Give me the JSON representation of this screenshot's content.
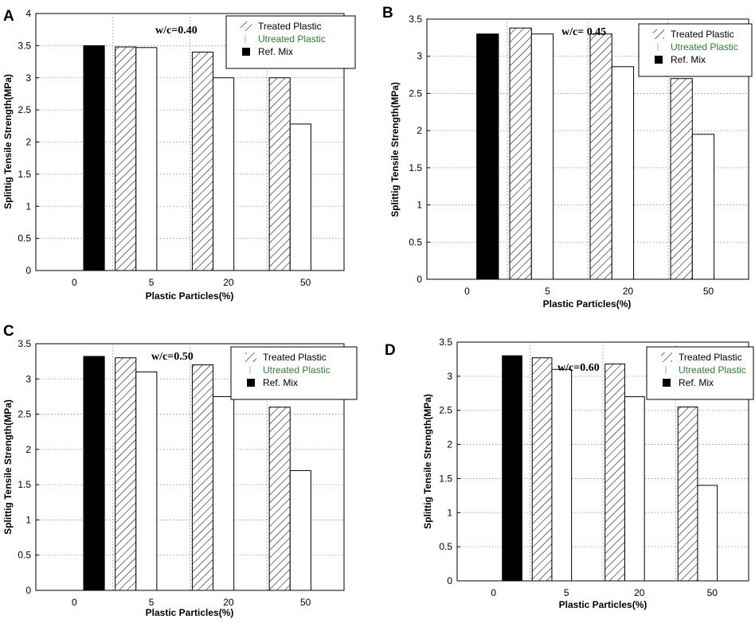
{
  "colors": {
    "untreated_legend": "#2e7d32",
    "ref_fill": "#000000",
    "frame": "#000000",
    "grid": "#888888"
  },
  "chart_data": [
    {
      "panel": "A",
      "type": "bar",
      "annotation": "w/c=0.40",
      "categories": [
        "0",
        "5",
        "20",
        "50"
      ],
      "ylim": [
        0,
        4
      ],
      "yticks": [
        "0",
        "0.5",
        "1",
        "1.5",
        "2",
        "2.5",
        "3",
        "3.5",
        "4"
      ],
      "xlabel": "Plastic Particles(%)",
      "ylabel": "Splittig Tensile Strength(MPa)",
      "legend": [
        "Treated Plastic",
        "Utreated Plastic",
        "Ref. Mix"
      ],
      "ref_value": 3.5,
      "series": [
        {
          "name": "Treated Plastic",
          "values": [
            null,
            3.48,
            3.4,
            3.0
          ]
        },
        {
          "name": "Utreated Plastic",
          "values": [
            null,
            3.47,
            3.0,
            2.28
          ]
        }
      ]
    },
    {
      "panel": "B",
      "type": "bar",
      "annotation": "w/c= 0.45",
      "categories": [
        "0",
        "5",
        "20",
        "50"
      ],
      "ylim": [
        0,
        3.5
      ],
      "yticks": [
        "0",
        "0.5",
        "1",
        "1.5",
        "2",
        "2.5",
        "3",
        "3.5"
      ],
      "xlabel": "Plastic Particles(%)",
      "ylabel": "Splittig Tensile Strength(MPa)",
      "legend": [
        "Treated Plastic",
        "Utreated Plastic",
        "Ref. Mix"
      ],
      "ref_value": 3.3,
      "series": [
        {
          "name": "Treated Plastic",
          "values": [
            null,
            3.38,
            3.3,
            2.7
          ]
        },
        {
          "name": "Utreated Plastic",
          "values": [
            null,
            3.3,
            2.86,
            1.95
          ]
        }
      ]
    },
    {
      "panel": "C",
      "type": "bar",
      "annotation": "w/c=0.50",
      "categories": [
        "0",
        "5",
        "20",
        "50"
      ],
      "ylim": [
        0,
        3.5
      ],
      "yticks": [
        "0",
        "0.5",
        "1",
        "1.5",
        "2",
        "2.5",
        "3",
        "3.5"
      ],
      "xlabel": "Plastic Particles(%)",
      "ylabel": "Splittig Tensile Strength(MPa)",
      "legend": [
        "Treated Plastic",
        "Utreated Plastic",
        "Ref. Mix"
      ],
      "ref_value": 3.32,
      "series": [
        {
          "name": "Treated Plastic",
          "values": [
            null,
            3.3,
            3.2,
            2.6
          ]
        },
        {
          "name": "Utreated Plastic",
          "values": [
            null,
            3.1,
            2.75,
            1.7
          ]
        }
      ]
    },
    {
      "panel": "D",
      "type": "bar",
      "annotation": "w/c=0.60",
      "categories": [
        "0",
        "5",
        "20",
        "50"
      ],
      "ylim": [
        0,
        3.5
      ],
      "yticks": [
        "0",
        "0.5",
        "1",
        "1.5",
        "2",
        "2.5",
        "3",
        "3.5"
      ],
      "xlabel": "Plastic Particles(%)",
      "ylabel": "Splittig Tensile Strength(MPa)",
      "legend": [
        "Treated Plastic",
        "Utreated Plastic",
        "Ref. Mix"
      ],
      "ref_value": 3.3,
      "series": [
        {
          "name": "Treated Plastic",
          "values": [
            null,
            3.27,
            3.18,
            2.55
          ]
        },
        {
          "name": "Utreated Plastic",
          "values": [
            null,
            3.1,
            2.7,
            1.4
          ]
        }
      ]
    }
  ]
}
